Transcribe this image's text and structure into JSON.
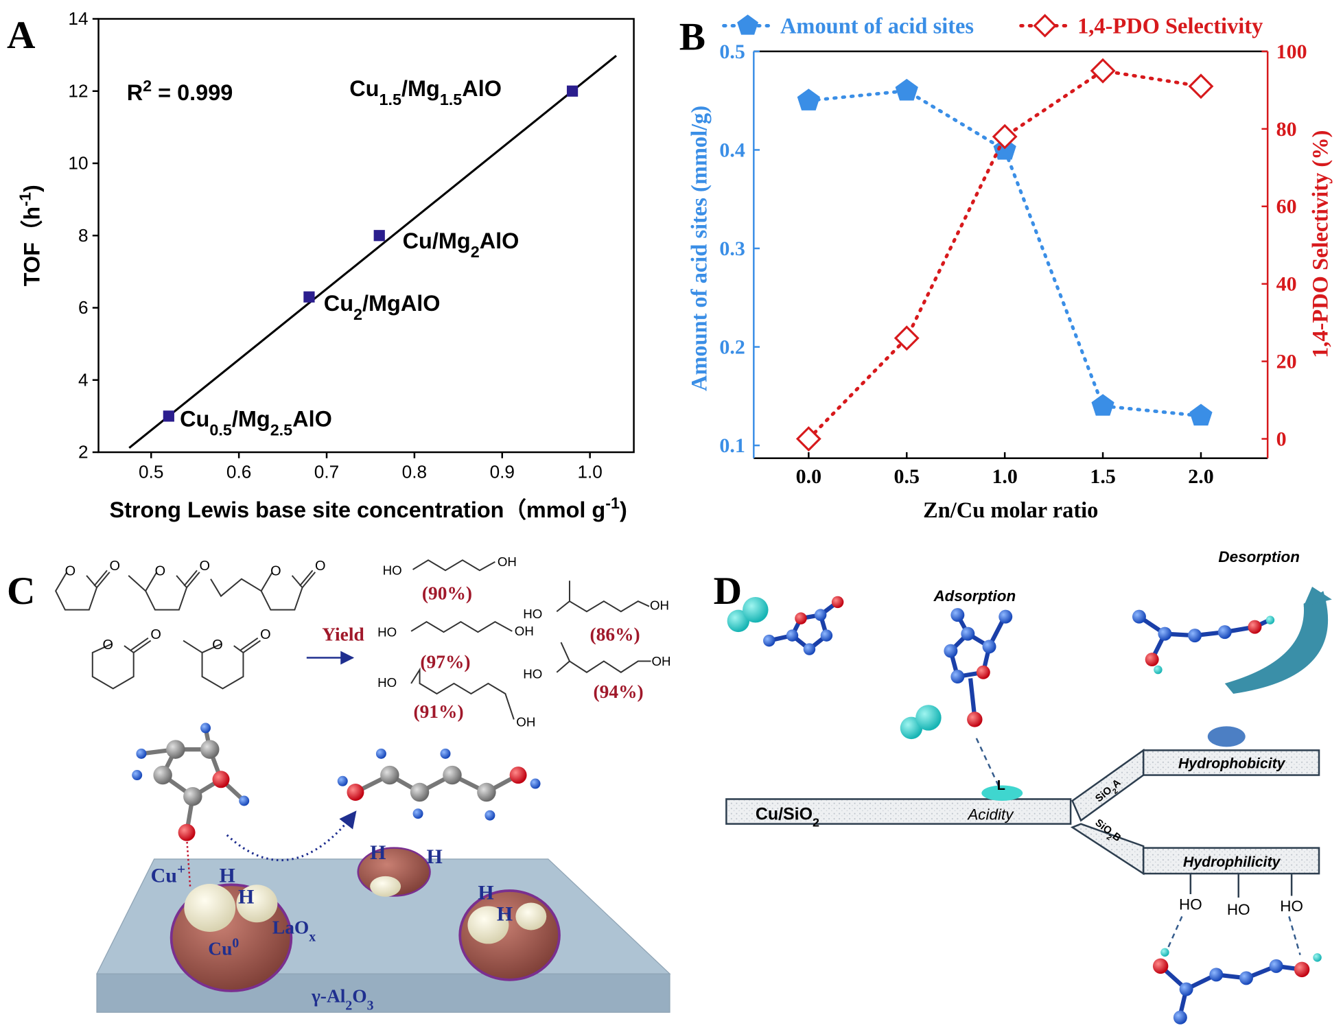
{
  "chart_data": [
    {
      "type": "scatter",
      "panel": "A",
      "annotation": [
        "R",
        "2",
        " = 0.999"
      ],
      "x": [
        0.52,
        0.68,
        0.76,
        0.98
      ],
      "values": [
        3,
        6.3,
        8,
        12
      ],
      "point_labels": [
        [
          "Cu",
          "0.5",
          "/Mg",
          "2.5",
          "AlO"
        ],
        [
          "Cu",
          "2",
          "/MgAlO"
        ],
        [
          "Cu/Mg",
          "2",
          "AlO"
        ],
        [
          "Cu",
          "1.5",
          "/Mg",
          "1.5",
          "AlO"
        ]
      ],
      "color": "#2b1e8e",
      "fit_line": {
        "x": [
          0.475,
          1.03
        ],
        "y": [
          2.12,
          12.98
        ]
      },
      "xlabel": [
        "Strong Lewis base site concentration（mmol g",
        "-1",
        ")"
      ],
      "ylabel": [
        "TOF（h",
        "-1",
        ")"
      ],
      "xlim": [
        0.44,
        1.05
      ],
      "ylim": [
        2,
        14
      ],
      "xticks": [
        0.5,
        0.6,
        0.7,
        0.8,
        0.9,
        {
          "value": 1.0,
          "label": "1.0"
        }
      ],
      "yticks": [
        2,
        4,
        6,
        8,
        10,
        12,
        14
      ]
    },
    {
      "type": "line",
      "panel": "B",
      "x": [
        0,
        0.5,
        1,
        1.5,
        2
      ],
      "series": [
        {
          "name": "Amount of acid sites",
          "color": "#3a8ee6",
          "values": [
            0.45,
            0.46,
            0.4,
            0.14,
            0.13
          ]
        },
        {
          "name": "1,4-PDO Selectivity",
          "color": "#d7191c",
          "values": [
            0,
            26,
            78,
            95,
            91
          ],
          "axis": "y2"
        }
      ],
      "xlabel": "Zn/Cu molar ratio",
      "ylabel": "Amount of acid sites (mmol/g)",
      "y2label": "1,4-PDO Selectivity (%)",
      "xlim": [
        -0.28,
        2.34
      ],
      "ylim": [
        0.087,
        0.5
      ],
      "y2lim": [
        -5,
        100
      ],
      "xticks": [
        {
          "value": 0,
          "label": "0.0"
        },
        {
          "value": 0.5,
          "label": "0.5"
        },
        {
          "value": 1,
          "label": "1.0"
        },
        {
          "value": 1.5,
          "label": "1.5"
        },
        {
          "value": 2,
          "label": "2.0"
        }
      ],
      "yticks": [
        0.1,
        0.2,
        0.3,
        0.4,
        0.5
      ],
      "y2ticks": [
        0,
        20,
        40,
        60,
        80,
        100
      ]
    }
  ],
  "panel_c": {
    "letter": "C",
    "ring_atoms": [
      "O",
      "O",
      "O",
      "O",
      "O",
      "O",
      "O",
      "O",
      "O",
      "O"
    ],
    "yield_label": "Yield",
    "diol_groups": [
      "HO",
      "OH",
      "HO",
      "OH",
      "HO",
      "OH",
      "HO",
      "OH",
      "HO",
      "OH"
    ],
    "yields": [
      "(90%)",
      "(86%)",
      "(97%)",
      "(91%)",
      "(94%)"
    ],
    "cu_plus": [
      "Cu",
      "+"
    ],
    "cu_zero": [
      "Cu",
      "0"
    ],
    "laox": [
      "LaO",
      "x"
    ],
    "h_atoms": [
      "H",
      "H",
      "H",
      "H",
      "H",
      "H"
    ],
    "support": [
      "γ-Al",
      "2",
      "O",
      "3"
    ]
  },
  "panel_d": {
    "letter": "D",
    "adsorption": "Adsorption",
    "desorption": "Desorption",
    "base": [
      "Cu/SiO",
      "2"
    ],
    "acidity": "Acidity",
    "site": "L",
    "branch_a": [
      "SiO",
      "2",
      "A"
    ],
    "branch_b": [
      "SiO",
      "2",
      "B"
    ],
    "hydrophobicity": "Hydrophobicity",
    "hydrophilicity": "Hydrophilicity",
    "hydroxyls": [
      "HO",
      "HO",
      "HO"
    ]
  }
}
